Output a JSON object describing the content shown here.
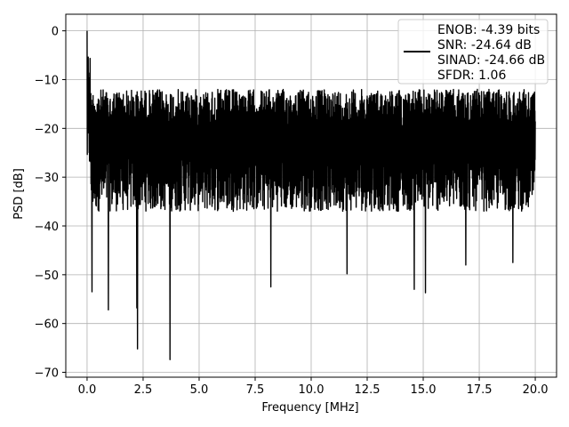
{
  "chart_data": {
    "type": "line",
    "title": "",
    "xlabel": "Frequency [MHz]",
    "ylabel": "PSD [dB]",
    "xlim": [
      -0.95,
      20.95
    ],
    "ylim": [
      -71,
      3.4
    ],
    "x_ticks": [
      0.0,
      2.5,
      5.0,
      7.5,
      10.0,
      12.5,
      15.0,
      17.5,
      20.0
    ],
    "x_tick_labels": [
      "0.0",
      "2.5",
      "5.0",
      "7.5",
      "10.0",
      "12.5",
      "15.0",
      "17.5",
      "20.0"
    ],
    "y_ticks": [
      0,
      -10,
      -20,
      -30,
      -40,
      -50,
      -60,
      -70
    ],
    "y_tick_labels": [
      "0",
      "−10",
      "−20",
      "−30",
      "−40",
      "−50",
      "−60",
      "−70"
    ],
    "grid": true,
    "legend_position": "top-right",
    "series": [
      {
        "name": "ENOB: -4.39 bits\nSNR: -24.64 dB\nSINAD: -24.66 dB\nSFDR: 1.06",
        "color": "#000000",
        "x_range": [
          0,
          20
        ],
        "peak": {
          "x": 0.0,
          "y": 0.0
        },
        "typical_upper": -12,
        "typical_lower": -37,
        "notable_dips": [
          {
            "x": 0.22,
            "y": -53.5
          },
          {
            "x": 0.95,
            "y": -57.2
          },
          {
            "x": 2.22,
            "y": -56.8
          },
          {
            "x": 2.25,
            "y": -65.2
          },
          {
            "x": 3.7,
            "y": -67.4
          },
          {
            "x": 8.2,
            "y": -52.5
          },
          {
            "x": 11.6,
            "y": -49.8
          },
          {
            "x": 14.6,
            "y": -53.0
          },
          {
            "x": 15.1,
            "y": -53.7
          },
          {
            "x": 16.9,
            "y": -48.0
          },
          {
            "x": 19.0,
            "y": -47.5
          }
        ]
      }
    ]
  },
  "legend": {
    "lines": [
      "ENOB: -4.39 bits",
      "SNR: -24.64 dB",
      "SINAD: -24.66 dB",
      "SFDR: 1.06"
    ]
  },
  "colors": {
    "line": "#000000",
    "grid": "#b0b0b0",
    "background": "#ffffff"
  }
}
